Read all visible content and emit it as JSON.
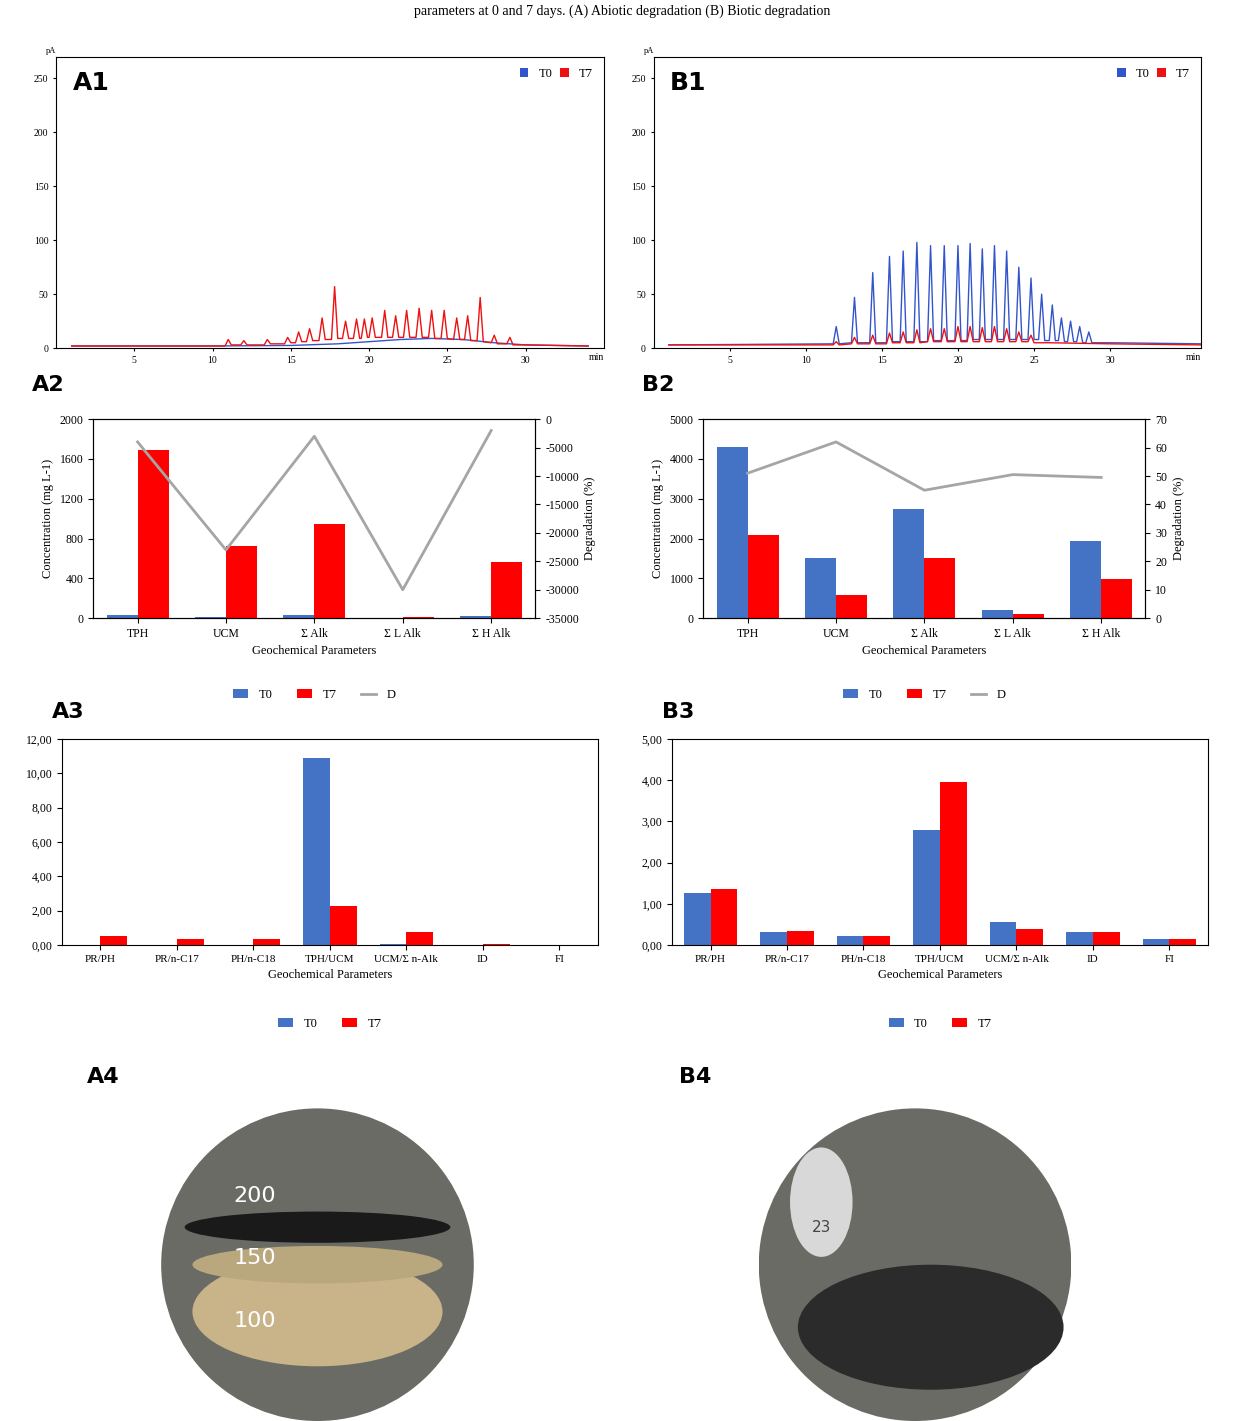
{
  "caption": "parameters at 0 and 7 days. (A) Abiotic degradation (B) Biotic degradation",
  "chart_data": [
    {
      "type": "line",
      "title": "A1",
      "x_label": "min",
      "y_label": "pA",
      "xlim": [
        0,
        35
      ],
      "xticks": [
        5,
        10,
        15,
        20,
        25,
        30
      ],
      "ylim": [
        0,
        270
      ],
      "yticks": [
        0,
        50,
        100,
        150,
        200,
        250
      ],
      "legend": "upper right",
      "series": [
        {
          "name": "T0",
          "color": "#3355cc",
          "x": [
            1,
            5,
            10,
            15,
            18,
            20,
            22,
            24,
            26,
            28,
            30,
            34
          ],
          "values": [
            2,
            2,
            2,
            2.5,
            4,
            6,
            8,
            9,
            8,
            5,
            3,
            2
          ]
        },
        {
          "name": "T7",
          "color": "#ee1111",
          "x": [
            1,
            10.8,
            11,
            11.2,
            11.8,
            12,
            12.2,
            13.3,
            13.5,
            13.7,
            14.6,
            14.8,
            15,
            15.3,
            15.5,
            15.7,
            16,
            16.2,
            16.4,
            16.8,
            17,
            17.2,
            17.6,
            17.8,
            18,
            18.3,
            18.5,
            18.7,
            19,
            19.2,
            19.4,
            19.5,
            19.7,
            19.9,
            20,
            20.2,
            20.4,
            20.8,
            21,
            21.2,
            21.5,
            21.7,
            21.9,
            22.2,
            22.4,
            22.6,
            23,
            23.2,
            23.4,
            23.8,
            24,
            24.2,
            24.6,
            24.8,
            25,
            25.4,
            25.6,
            25.8,
            26.1,
            26.3,
            26.5,
            26.9,
            27.1,
            27.3,
            27.8,
            28,
            28.2,
            28.8,
            29,
            29.2,
            30,
            34
          ],
          "values": [
            2,
            2,
            8,
            3,
            3,
            7,
            3,
            3,
            8,
            4,
            4,
            10,
            5,
            5,
            15,
            6,
            6,
            18,
            7,
            7,
            28,
            8,
            8,
            57,
            9,
            9,
            25,
            9,
            9,
            27,
            9,
            9,
            27,
            10,
            10,
            28,
            10,
            10,
            35,
            10,
            10,
            30,
            10,
            10,
            35,
            10,
            10,
            37,
            10,
            10,
            35,
            9,
            9,
            35,
            9,
            8,
            28,
            8,
            8,
            30,
            7,
            7,
            47,
            6,
            5,
            12,
            4,
            4,
            10,
            3,
            3,
            2
          ]
        }
      ]
    },
    {
      "type": "line",
      "title": "B1",
      "x_label": "min",
      "y_label": "pA",
      "xlim": [
        0,
        36
      ],
      "xticks": [
        5,
        10,
        15,
        20,
        25,
        30
      ],
      "ylim": [
        0,
        270
      ],
      "yticks": [
        0,
        50,
        100,
        150,
        200,
        250
      ],
      "legend": "upper right",
      "series": [
        {
          "name": "T0",
          "color": "#3355cc",
          "x": [
            1,
            11.8,
            12,
            12.2,
            13,
            13.2,
            13.4,
            14.2,
            14.4,
            14.6,
            15.3,
            15.5,
            15.7,
            16.2,
            16.4,
            16.6,
            17.1,
            17.3,
            17.5,
            18,
            18.2,
            18.4,
            18.9,
            19.1,
            19.3,
            19.8,
            20,
            20.2,
            20.6,
            20.8,
            21,
            21.4,
            21.6,
            21.8,
            22.2,
            22.4,
            22.6,
            23,
            23.2,
            23.4,
            23.8,
            24,
            24.2,
            24.6,
            24.8,
            25,
            25.3,
            25.5,
            25.7,
            26,
            26.2,
            26.4,
            26.6,
            26.8,
            27,
            27.2,
            27.4,
            27.6,
            27.8,
            28,
            28.2,
            28.4,
            28.6,
            28.8,
            30,
            36
          ],
          "values": [
            3,
            4,
            20,
            4,
            5,
            47,
            5,
            5,
            70,
            5,
            5,
            85,
            6,
            6,
            90,
            6,
            6,
            98,
            6,
            6,
            95,
            7,
            7,
            95,
            7,
            7,
            95,
            7,
            7,
            97,
            8,
            8,
            92,
            8,
            8,
            95,
            8,
            8,
            90,
            8,
            8,
            75,
            8,
            8,
            65,
            8,
            8,
            50,
            7,
            7,
            40,
            7,
            7,
            28,
            6,
            6,
            25,
            6,
            6,
            20,
            5,
            5,
            15,
            5,
            5,
            4
          ]
        },
        {
          "name": "T7",
          "color": "#ee1111",
          "x": [
            1,
            11.8,
            12,
            12.2,
            13,
            13.2,
            13.4,
            14.2,
            14.4,
            14.6,
            15.3,
            15.5,
            15.7,
            16.2,
            16.4,
            16.6,
            17.1,
            17.3,
            17.5,
            18,
            18.2,
            18.4,
            18.9,
            19.1,
            19.3,
            19.8,
            20,
            20.2,
            20.6,
            20.8,
            21,
            21.4,
            21.6,
            21.8,
            22.2,
            22.4,
            22.6,
            23,
            23.2,
            23.4,
            23.8,
            24,
            24.2,
            24.6,
            24.8,
            25,
            26,
            30,
            36
          ],
          "values": [
            3,
            3,
            6,
            3,
            4,
            10,
            4,
            4,
            12,
            4,
            4,
            14,
            5,
            5,
            15,
            5,
            5,
            17,
            5,
            6,
            18,
            6,
            6,
            18,
            6,
            6,
            20,
            6,
            6,
            20,
            6,
            6,
            19,
            6,
            6,
            20,
            6,
            6,
            18,
            6,
            6,
            15,
            6,
            6,
            12,
            5,
            5,
            4,
            3
          ]
        }
      ]
    },
    {
      "type": "bar",
      "title": "A2",
      "x_label": "Geochemical Parameters",
      "y_label": "Concentration (mg L-1)",
      "y2_label": "Degradation (%)",
      "categories": [
        "TPH",
        "UCM",
        "Σ Alk",
        "Σ L Alk",
        "Σ H Alk"
      ],
      "ylim": [
        0,
        2000
      ],
      "yticks": [
        0,
        400,
        800,
        1200,
        1600,
        2000
      ],
      "y2lim": [
        -35000,
        0
      ],
      "y2ticks": [
        -35000,
        -30000,
        -25000,
        -20000,
        -15000,
        -10000,
        -5000,
        0
      ],
      "legend": "below",
      "series": [
        {
          "name": "T0",
          "color": "#4472c4",
          "type": "bar",
          "values": [
            30,
            10,
            30,
            5,
            20
          ]
        },
        {
          "name": "T7",
          "color": "#ff0000",
          "type": "bar",
          "values": [
            1690,
            730,
            950,
            10,
            560
          ]
        },
        {
          "name": "D",
          "color": "#a5a5a5",
          "type": "line",
          "axis": "y2",
          "values": [
            -4000,
            -23000,
            -3000,
            -30000,
            -2000
          ]
        }
      ]
    },
    {
      "type": "bar",
      "title": "B2",
      "x_label": "Geochemical Parameters",
      "y_label": "Concentration (mg L-1)",
      "y2_label": "Degradation (%)",
      "categories": [
        "TPH",
        "UCM",
        "Σ Alk",
        "Σ L Alk",
        "Σ H Alk"
      ],
      "ylim": [
        0,
        5000
      ],
      "yticks": [
        0,
        1000,
        2000,
        3000,
        4000,
        5000
      ],
      "y2lim": [
        0,
        70
      ],
      "y2ticks": [
        0,
        10,
        20,
        30,
        40,
        50,
        60,
        70
      ],
      "legend": "below",
      "series": [
        {
          "name": "T0",
          "color": "#4472c4",
          "type": "bar",
          "values": [
            4300,
            1520,
            2750,
            200,
            1950
          ]
        },
        {
          "name": "T7",
          "color": "#ff0000",
          "type": "bar",
          "values": [
            2080,
            580,
            1510,
            100,
            980
          ]
        },
        {
          "name": "D",
          "color": "#a5a5a5",
          "type": "line",
          "axis": "y2",
          "values": [
            51,
            62,
            45,
            50.5,
            49.5
          ]
        }
      ]
    },
    {
      "type": "bar",
      "title": "A3",
      "x_label": "Geochemical Parameters",
      "categories": [
        "PR/PH",
        "PR/n-C17",
        "PH/n-C18",
        "TPH/UCM",
        "UCM/Σ n-Alk",
        "ID",
        "FI"
      ],
      "ylim": [
        0,
        12
      ],
      "yticks": [
        {
          "value": 0,
          "label": "0,00"
        },
        {
          "value": 2,
          "label": "2,00"
        },
        {
          "value": 4,
          "label": "4,00"
        },
        {
          "value": 6,
          "label": "6,00"
        },
        {
          "value": 8,
          "label": "8,00"
        },
        {
          "value": 10,
          "label": "10,00"
        },
        {
          "value": 12,
          "label": "12,00"
        }
      ],
      "legend": "below",
      "series": [
        {
          "name": "T0",
          "color": "#4472c4",
          "values": [
            0,
            0,
            0,
            10.9,
            0.05,
            0.01,
            0.01
          ]
        },
        {
          "name": "T7",
          "color": "#ff0000",
          "values": [
            0.5,
            0.35,
            0.35,
            2.25,
            0.75,
            0.07,
            0.02
          ]
        }
      ]
    },
    {
      "type": "bar",
      "title": "B3",
      "x_label": "Geochemical Parameters",
      "categories": [
        "PR/PH",
        "PR/n-C17",
        "PH/n-C18",
        "TPH/UCM",
        "UCM/Σ n-Alk",
        "ID",
        "FI"
      ],
      "ylim": [
        0,
        5
      ],
      "yticks": [
        {
          "value": 0,
          "label": "0,00"
        },
        {
          "value": 1,
          "label": "1,00"
        },
        {
          "value": 2,
          "label": "2,00"
        },
        {
          "value": 3,
          "label": "3,00"
        },
        {
          "value": 4,
          "label": "4,00"
        },
        {
          "value": 5,
          "label": "5,00"
        }
      ],
      "legend": "below",
      "series": [
        {
          "name": "T0",
          "color": "#4472c4",
          "values": [
            1.25,
            0.32,
            0.22,
            2.8,
            0.55,
            0.32,
            0.15
          ]
        },
        {
          "name": "T7",
          "color": "#ff0000",
          "values": [
            1.35,
            0.33,
            0.22,
            3.95,
            0.38,
            0.32,
            0.15
          ]
        }
      ]
    }
  ],
  "photos": [
    {
      "label": "A4",
      "texts": [
        "200",
        "150",
        "100"
      ]
    },
    {
      "label": "B4",
      "texts": [
        "23"
      ]
    }
  ]
}
